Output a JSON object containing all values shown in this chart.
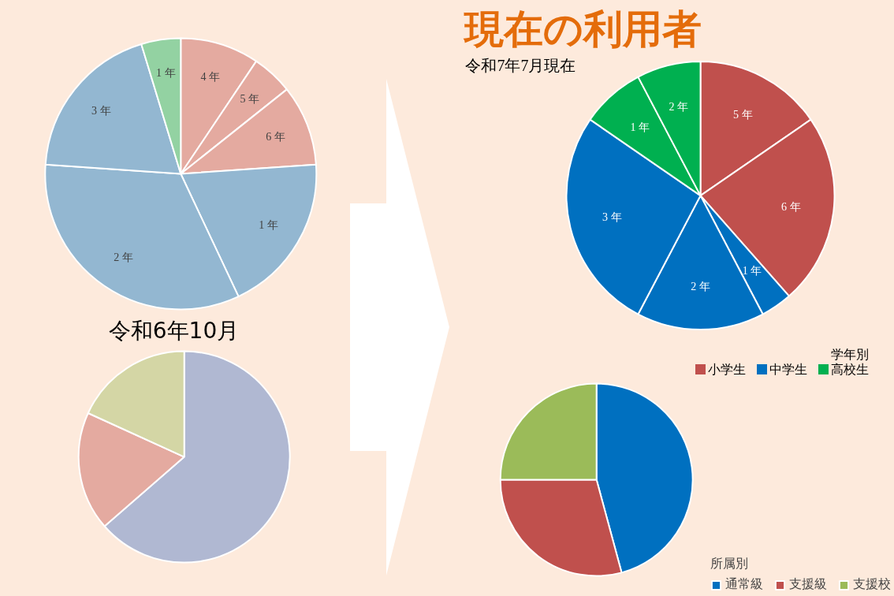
{
  "chart_data": [
    {
      "type": "pie",
      "categories": [
        "4 年",
        "5 年",
        "6 年",
        "1 年",
        "2 年",
        "3 年",
        "1 年"
      ],
      "values": [
        9.4,
        4.9,
        9.6,
        19.1,
        33.1,
        19.2,
        4.7
      ],
      "colors": [
        "#c0504d",
        "#c0504d",
        "#c0504d",
        "#0070c0",
        "#0070c0",
        "#0070c0",
        "#00b050"
      ]
    },
    {
      "type": "pie",
      "title": "令和6年10月",
      "categories": [
        null,
        null,
        null
      ],
      "values": [
        63.6,
        18.2,
        18.2
      ],
      "colors": [
        "#4472c4",
        "#c0504d",
        "#9bbb59"
      ]
    },
    {
      "type": "pie",
      "title": "現在の利用者",
      "subtitle": "令和7年7月現在",
      "categories": [
        "5 年",
        "6 年",
        "1 年",
        "2 年",
        "3 年",
        "1 年",
        "2 年"
      ],
      "values": [
        15.4,
        23.1,
        3.8,
        15.4,
        26.9,
        7.7,
        7.7
      ],
      "colors": [
        "#c0504d",
        "#c0504d",
        "#0070c0",
        "#0070c0",
        "#0070c0",
        "#00b050",
        "#00b050"
      ],
      "legend_title": "学年別",
      "annotations": [
        "小学生",
        "中学生",
        "高校生"
      ]
    },
    {
      "type": "pie",
      "categories": [
        "通常級",
        "支援級",
        "支援校"
      ],
      "values": [
        45.8,
        29.2,
        25.0
      ],
      "colors": [
        "#0070c0",
        "#c0504d",
        "#9bbb59"
      ],
      "legend": "bottom right",
      "legend_title": "所属別"
    }
  ]
}
